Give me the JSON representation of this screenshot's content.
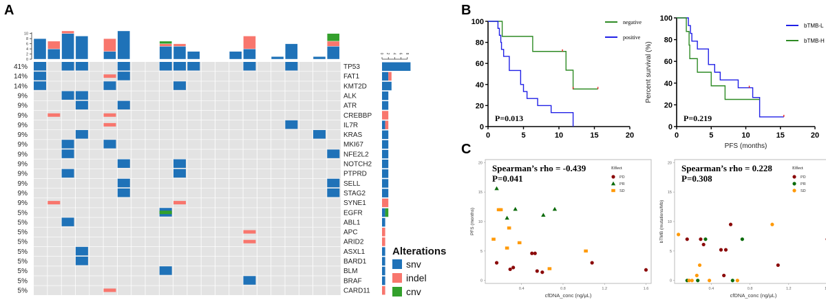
{
  "panels": {
    "A": "A",
    "B": "B",
    "C": "C"
  },
  "colors": {
    "snv": "#1f72b8",
    "indel": "#f8766d",
    "cnv": "#33a02c",
    "empty": "#e3e3e3",
    "km_blue": "#1f1fe6",
    "km_green": "#2d8a23",
    "censor": "#e62020",
    "PD": "#8b0a0a",
    "PR": "#0b6b0b",
    "SD": "#ff9a0a"
  },
  "chart_data": [
    {
      "id": "oncoplot",
      "type": "heatmap",
      "title": "",
      "n_samples": 22,
      "top_bar": {
        "ylim": [
          0,
          11
        ],
        "ticks": [
          0,
          2,
          4,
          6,
          8,
          10
        ],
        "samples": [
          {
            "snv": 8,
            "indel": 0,
            "cnv": 0
          },
          {
            "snv": 4,
            "indel": 3,
            "cnv": 0
          },
          {
            "snv": 10,
            "indel": 1,
            "cnv": 0
          },
          {
            "snv": 9,
            "indel": 0,
            "cnv": 0
          },
          {
            "snv": 0,
            "indel": 0,
            "cnv": 0
          },
          {
            "snv": 3,
            "indel": 5,
            "cnv": 0
          },
          {
            "snv": 11,
            "indel": 0,
            "cnv": 0
          },
          {
            "snv": 0,
            "indel": 0,
            "cnv": 0
          },
          {
            "snv": 0,
            "indel": 0,
            "cnv": 0
          },
          {
            "snv": 5,
            "indel": 1,
            "cnv": 1
          },
          {
            "snv": 5,
            "indel": 1,
            "cnv": 0
          },
          {
            "snv": 3,
            "indel": 0,
            "cnv": 0
          },
          {
            "snv": 0,
            "indel": 0,
            "cnv": 0
          },
          {
            "snv": 0,
            "indel": 0,
            "cnv": 0
          },
          {
            "snv": 3,
            "indel": 0,
            "cnv": 0
          },
          {
            "snv": 4,
            "indel": 5,
            "cnv": 0
          },
          {
            "snv": 0,
            "indel": 0,
            "cnv": 0
          },
          {
            "snv": 1,
            "indel": 0,
            "cnv": 0
          },
          {
            "snv": 6,
            "indel": 0,
            "cnv": 0
          },
          {
            "snv": 0,
            "indel": 0,
            "cnv": 0
          },
          {
            "snv": 1,
            "indel": 0,
            "cnv": 0
          },
          {
            "snv": 5,
            "indel": 2,
            "cnv": 3
          }
        ]
      },
      "side_bar": {
        "ticks": [
          0,
          2,
          4,
          6,
          8
        ],
        "xlim": [
          0,
          9
        ]
      },
      "genes": [
        {
          "name": "TP53",
          "pct": "41%",
          "alts": [
            [
              1,
              "snv"
            ],
            [
              3,
              "snv"
            ],
            [
              4,
              "snv"
            ],
            [
              7,
              "snv"
            ],
            [
              10,
              "snv"
            ],
            [
              11,
              "snv"
            ],
            [
              12,
              "snv"
            ],
            [
              16,
              "snv"
            ],
            [
              19,
              "snv"
            ]
          ]
        },
        {
          "name": "FAT1",
          "pct": "14%",
          "alts": [
            [
              1,
              "snv"
            ],
            [
              6,
              "indel"
            ],
            [
              7,
              "snv"
            ]
          ]
        },
        {
          "name": "KMT2D",
          "pct": "14%",
          "alts": [
            [
              1,
              "snv"
            ],
            [
              6,
              "snv"
            ],
            [
              11,
              "snv"
            ]
          ]
        },
        {
          "name": "ALK",
          "pct": "9%",
          "alts": [
            [
              3,
              "snv"
            ],
            [
              4,
              "snv"
            ]
          ]
        },
        {
          "name": "ATR",
          "pct": "9%",
          "alts": [
            [
              4,
              "snv"
            ],
            [
              7,
              "snv"
            ]
          ]
        },
        {
          "name": "CREBBP",
          "pct": "9%",
          "alts": [
            [
              2,
              "indel"
            ],
            [
              6,
              "indel"
            ]
          ]
        },
        {
          "name": "IL7R",
          "pct": "9%",
          "alts": [
            [
              6,
              "indel"
            ],
            [
              19,
              "snv"
            ]
          ]
        },
        {
          "name": "KRAS",
          "pct": "9%",
          "alts": [
            [
              4,
              "snv"
            ],
            [
              21,
              "snv"
            ]
          ]
        },
        {
          "name": "MKI67",
          "pct": "9%",
          "alts": [
            [
              3,
              "snv"
            ],
            [
              6,
              "snv"
            ]
          ]
        },
        {
          "name": "NFE2L2",
          "pct": "9%",
          "alts": [
            [
              3,
              "snv"
            ],
            [
              22,
              "snv"
            ]
          ]
        },
        {
          "name": "NOTCH2",
          "pct": "9%",
          "alts": [
            [
              7,
              "snv"
            ],
            [
              11,
              "snv"
            ]
          ]
        },
        {
          "name": "PTPRD",
          "pct": "9%",
          "alts": [
            [
              3,
              "snv"
            ],
            [
              11,
              "snv"
            ]
          ]
        },
        {
          "name": "SELL",
          "pct": "9%",
          "alts": [
            [
              7,
              "snv"
            ],
            [
              22,
              "snv"
            ]
          ]
        },
        {
          "name": "STAG2",
          "pct": "9%",
          "alts": [
            [
              7,
              "snv"
            ],
            [
              22,
              "snv"
            ]
          ]
        },
        {
          "name": "SYNE1",
          "pct": "9%",
          "alts": [
            [
              2,
              "indel"
            ],
            [
              11,
              "indel"
            ]
          ]
        },
        {
          "name": "EGFR",
          "pct": "5%",
          "alts": [
            [
              10,
              "snv+cnv"
            ]
          ]
        },
        {
          "name": "ABL1",
          "pct": "5%",
          "alts": [
            [
              3,
              "snv"
            ]
          ]
        },
        {
          "name": "APC",
          "pct": "5%",
          "alts": [
            [
              16,
              "indel"
            ]
          ]
        },
        {
          "name": "ARID2",
          "pct": "5%",
          "alts": [
            [
              16,
              "indel"
            ]
          ]
        },
        {
          "name": "ASXL1",
          "pct": "5%",
          "alts": [
            [
              4,
              "snv"
            ]
          ]
        },
        {
          "name": "BARD1",
          "pct": "5%",
          "alts": [
            [
              4,
              "snv"
            ]
          ]
        },
        {
          "name": "BLM",
          "pct": "5%",
          "alts": [
            [
              10,
              "snv"
            ]
          ]
        },
        {
          "name": "BRAF",
          "pct": "5%",
          "alts": [
            [
              16,
              "snv"
            ]
          ]
        },
        {
          "name": "CARD11",
          "pct": "5%",
          "alts": [
            [
              6,
              "indel"
            ]
          ]
        }
      ],
      "legend": {
        "title": "Alterations",
        "items": [
          "snv",
          "indel",
          "cnv"
        ]
      }
    },
    {
      "id": "km-ctdna",
      "type": "line",
      "title": "",
      "xlabel": "",
      "ylabel": "",
      "xlim": [
        0,
        20
      ],
      "ylim": [
        0,
        100
      ],
      "xticks": [
        0,
        5,
        10,
        15,
        20
      ],
      "yticks": [
        0,
        20,
        40,
        60,
        80,
        100
      ],
      "annotation": "P=0.013",
      "legend_position": "top-right",
      "series": [
        {
          "name": "negative",
          "color_key": "km_green",
          "steps": [
            [
              0,
              100
            ],
            [
              2.0,
              85.7
            ],
            [
              6.3,
              71.4
            ],
            [
              11.0,
              53.6
            ],
            [
              12.0,
              35.7
            ],
            [
              15.5,
              35.7
            ]
          ],
          "censored": [
            [
              10.5,
              71.4
            ],
            [
              12.0,
              35.7
            ],
            [
              15.5,
              35.7
            ]
          ]
        },
        {
          "name": "positive",
          "color_key": "km_blue",
          "steps": [
            [
              0,
              100
            ],
            [
              1.4,
              93.3
            ],
            [
              1.6,
              86.7
            ],
            [
              1.8,
              80.0
            ],
            [
              1.9,
              73.3
            ],
            [
              2.2,
              66.7
            ],
            [
              3.0,
              53.3
            ],
            [
              4.6,
              40.0
            ],
            [
              5.0,
              33.3
            ],
            [
              5.5,
              26.7
            ],
            [
              7.0,
              20.0
            ],
            [
              8.9,
              13.3
            ],
            [
              12.0,
              0
            ]
          ],
          "censored": []
        }
      ]
    },
    {
      "id": "km-btmb",
      "type": "line",
      "title": "",
      "xlabel": "PFS (months)",
      "ylabel": "Percent survival  (%)",
      "xlim": [
        0,
        20
      ],
      "ylim": [
        0,
        100
      ],
      "xticks": [
        0,
        5,
        10,
        15,
        20
      ],
      "yticks": [
        0,
        20,
        40,
        60,
        80,
        100
      ],
      "annotation": "P=0.219",
      "legend_position": "top-right",
      "series": [
        {
          "name": "bTMB-L",
          "color_key": "km_blue",
          "steps": [
            [
              0,
              100
            ],
            [
              1.7,
              92.9
            ],
            [
              2.0,
              85.7
            ],
            [
              2.2,
              78.6
            ],
            [
              3.0,
              71.4
            ],
            [
              4.6,
              57.1
            ],
            [
              5.5,
              50.0
            ],
            [
              6.3,
              42.9
            ],
            [
              8.9,
              35.7
            ],
            [
              11.0,
              26.8
            ],
            [
              12.0,
              8.9
            ],
            [
              15.5,
              8.9
            ]
          ],
          "censored": [
            [
              10.5,
              35.7
            ],
            [
              15.5,
              8.9
            ]
          ]
        },
        {
          "name": "bTMB-H",
          "color_key": "km_green",
          "steps": [
            [
              0,
              100
            ],
            [
              1.4,
              87.5
            ],
            [
              1.8,
              75.0
            ],
            [
              1.9,
              62.5
            ],
            [
              3.0,
              50.0
            ],
            [
              5.0,
              37.5
            ],
            [
              7.0,
              25.0
            ],
            [
              12.0,
              25.0
            ]
          ],
          "censored": []
        }
      ]
    },
    {
      "id": "scatter-pfs",
      "type": "scatter",
      "title": "",
      "xlabel": "cfDNA_conc (ng/μL)",
      "ylabel": "PFS (months)",
      "xlim": [
        0.05,
        1.65
      ],
      "ylim": [
        -0.5,
        20.5
      ],
      "xticks": [
        0.4,
        0.8,
        1.2,
        1.6
      ],
      "yticks": [
        0,
        5,
        10,
        15,
        20
      ],
      "annotation_lines": [
        "Spearman’s rho = -0.439",
        "P=0.041"
      ],
      "legend_title": "Effect",
      "legend_position": "top-right",
      "series": [
        {
          "name": "PD",
          "shape": "circle",
          "points": [
            [
              0.16,
              3.0
            ],
            [
              0.29,
              1.9
            ],
            [
              0.32,
              2.2
            ],
            [
              0.5,
              4.6
            ],
            [
              0.53,
              4.6
            ],
            [
              0.55,
              1.6
            ],
            [
              0.6,
              1.4
            ],
            [
              1.08,
              3.0
            ],
            [
              1.6,
              1.8
            ]
          ]
        },
        {
          "name": "PR",
          "shape": "triangle",
          "points": [
            [
              0.16,
              15.6
            ],
            [
              0.26,
              10.6
            ],
            [
              0.34,
              12.1
            ],
            [
              0.61,
              11.1
            ],
            [
              0.72,
              12.1
            ]
          ]
        },
        {
          "name": "SD",
          "shape": "square",
          "points": [
            [
              0.13,
              7.0
            ],
            [
              0.18,
              12.0
            ],
            [
              0.19,
              12.0
            ],
            [
              0.2,
              12.0
            ],
            [
              0.28,
              8.9
            ],
            [
              0.26,
              5.5
            ],
            [
              0.38,
              6.4
            ],
            [
              0.67,
              2.0
            ],
            [
              1.02,
              5.0
            ]
          ]
        }
      ]
    },
    {
      "id": "scatter-btmb",
      "type": "scatter",
      "title": "",
      "xlabel": "cfDNA_conc (ng/μL)",
      "ylabel": "bTMB (mutations/Mb)",
      "xlim": [
        0.02,
        1.65
      ],
      "ylim": [
        -0.5,
        20.5
      ],
      "xticks": [
        0.4,
        0.8,
        1.2,
        1.6
      ],
      "yticks": [
        0,
        5,
        10,
        15,
        20
      ],
      "annotation_lines": [
        "Spearman’s rho = 0.228",
        "P=0.308"
      ],
      "legend_title": "Effect",
      "legend_position": "top-right",
      "series": [
        {
          "name": "PD",
          "shape": "circle",
          "points": [
            [
              0.15,
              7.0
            ],
            [
              0.29,
              7.0
            ],
            [
              0.32,
              6.1
            ],
            [
              0.5,
              5.2
            ],
            [
              0.55,
              5.2
            ],
            [
              0.6,
              9.5
            ],
            [
              0.53,
              0.85
            ],
            [
              1.09,
              2.6
            ],
            [
              1.6,
              7.0
            ]
          ]
        },
        {
          "name": "PR",
          "shape": "circle",
          "points": [
            [
              0.15,
              0
            ],
            [
              0.26,
              0
            ],
            [
              0.34,
              7.0
            ],
            [
              0.62,
              0
            ],
            [
              0.72,
              7.0
            ]
          ]
        },
        {
          "name": "SD",
          "shape": "circle",
          "points": [
            [
              0.06,
              7.8
            ],
            [
              0.17,
              0
            ],
            [
              0.2,
              0
            ],
            [
              0.25,
              0.85
            ],
            [
              0.28,
              2.6
            ],
            [
              0.38,
              0
            ],
            [
              0.67,
              0
            ],
            [
              1.03,
              9.5
            ]
          ]
        }
      ]
    }
  ]
}
